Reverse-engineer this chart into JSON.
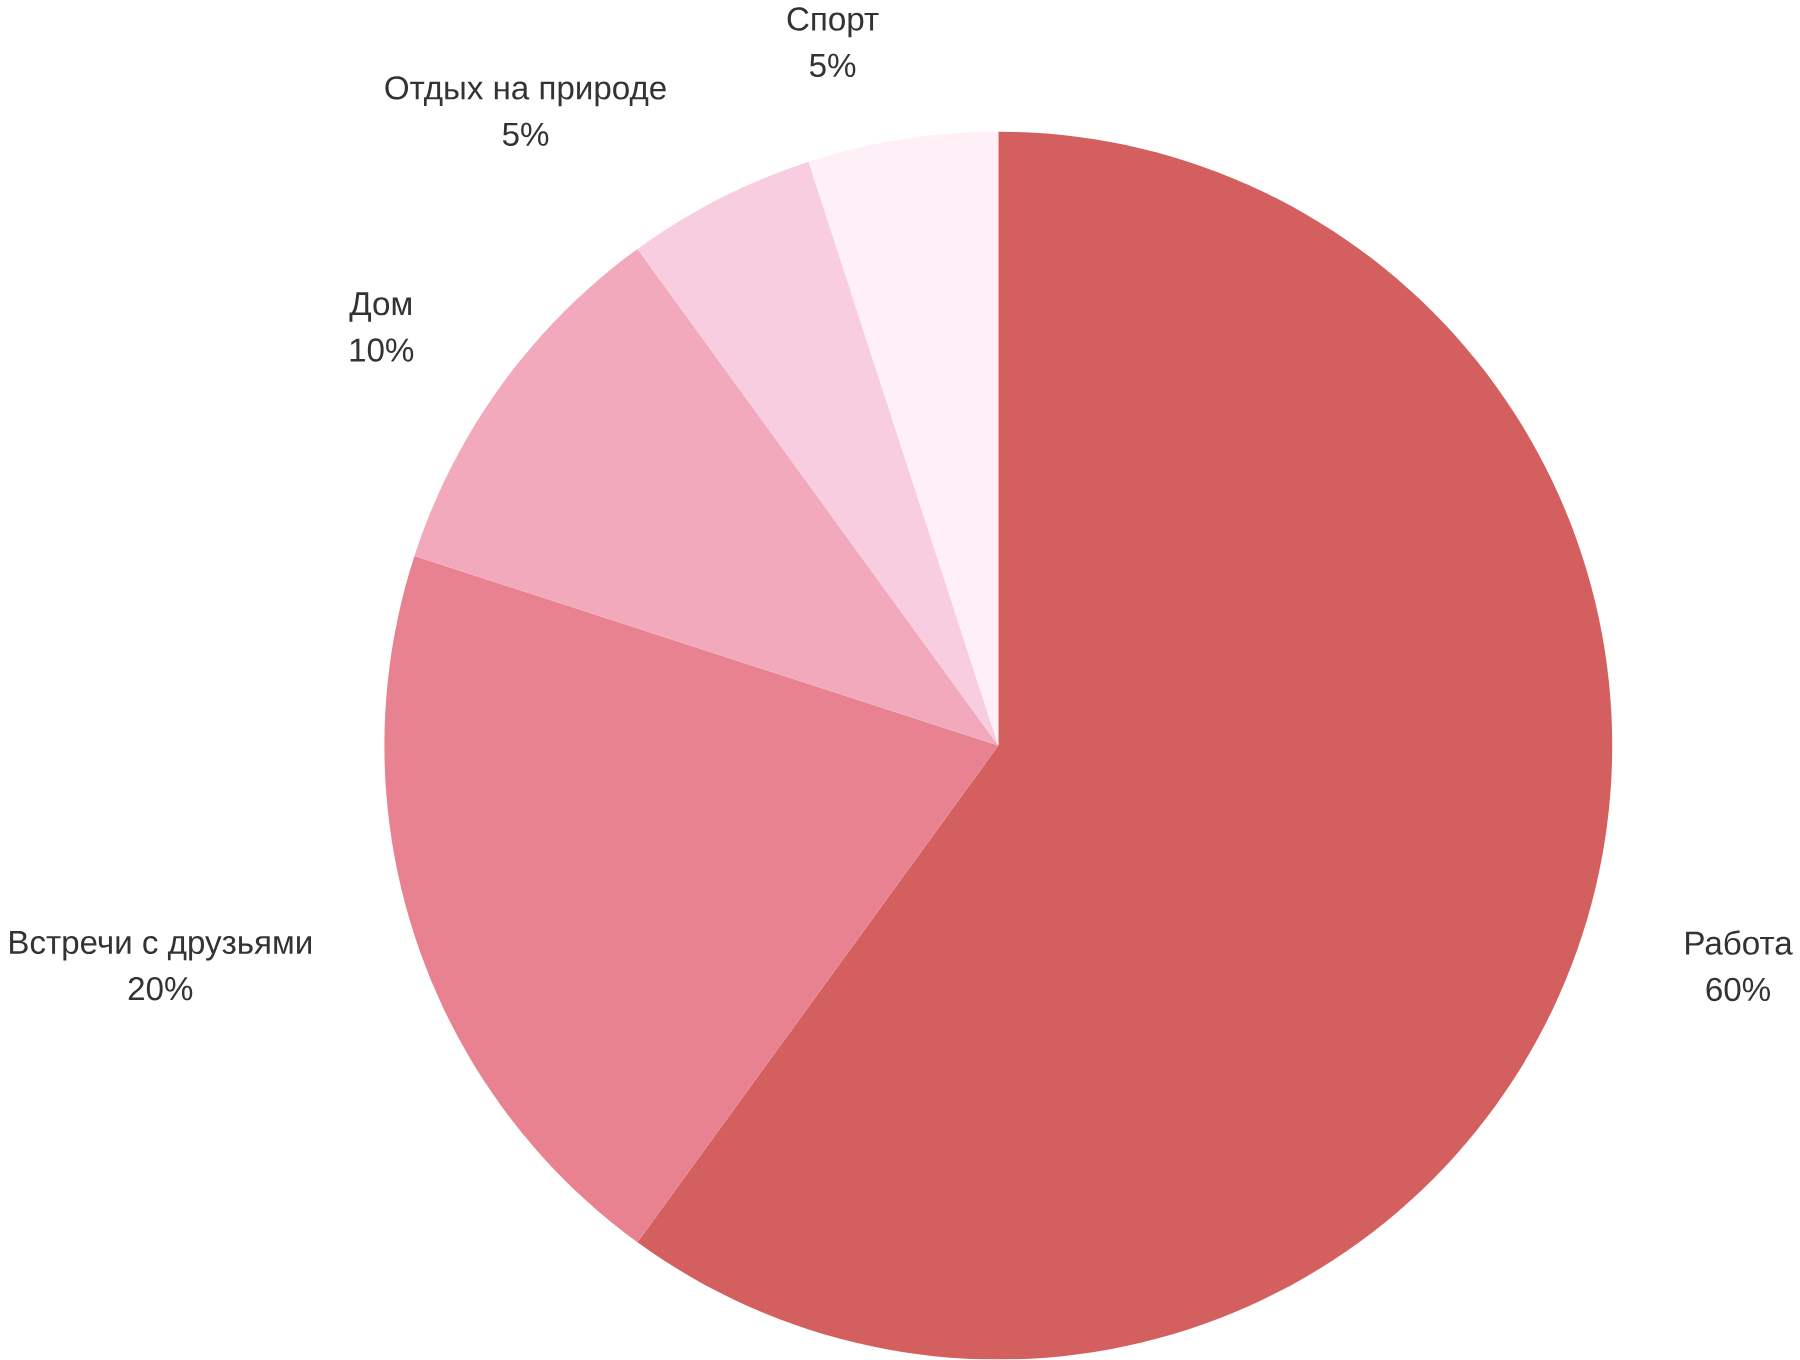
{
  "chart_data": {
    "type": "pie",
    "categories": [
      "Работа",
      "Встречи с друзьями",
      "Дом",
      "Отдых на природе",
      "Спорт"
    ],
    "values": [
      60,
      20,
      10,
      5,
      5
    ],
    "value_labels": [
      "60%",
      "20%",
      "10%",
      "5%",
      "5%"
    ],
    "colors": [
      "#d45f5f",
      "#e88290",
      "#f2a9bc",
      "#f8cde0",
      "#fff0f8"
    ]
  }
}
